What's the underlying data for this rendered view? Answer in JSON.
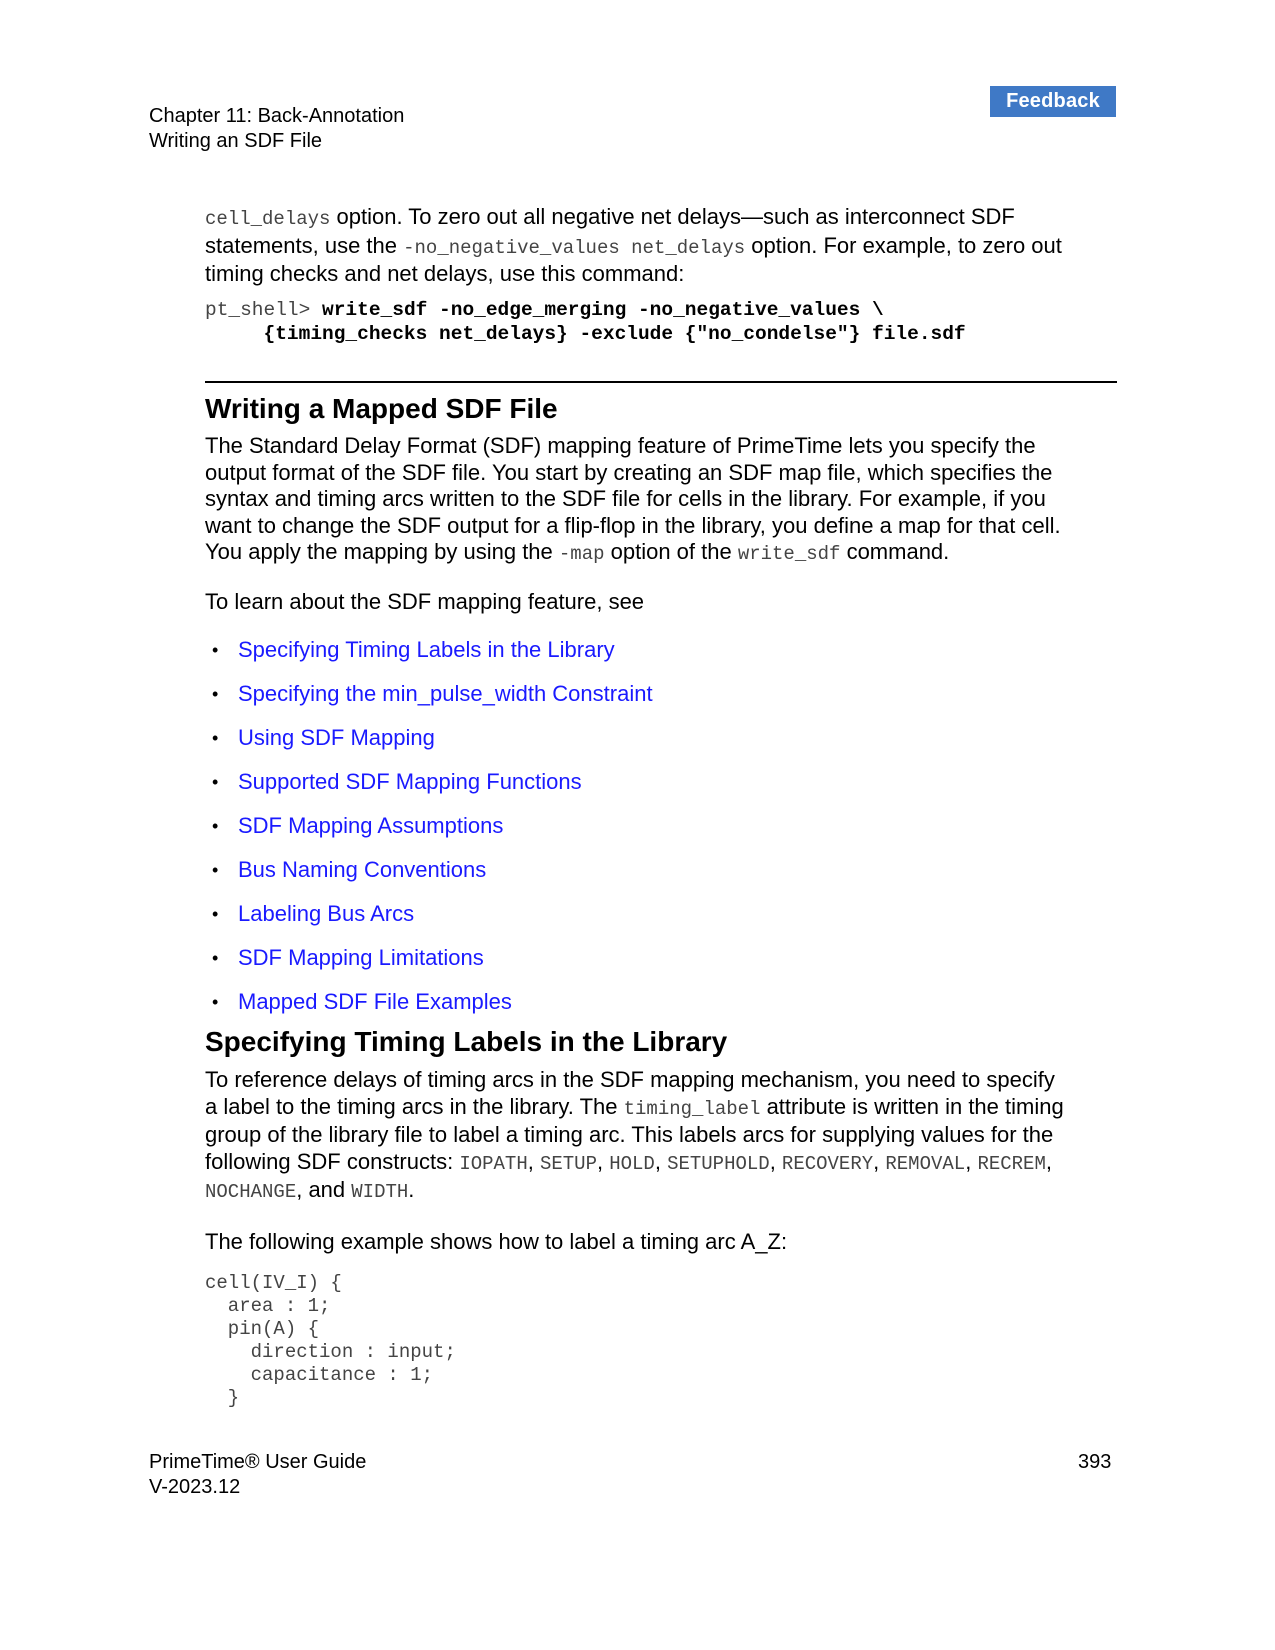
{
  "header": {
    "feedback_label": "Feedback",
    "chapter": "Chapter 11: Back-Annotation",
    "section": "Writing an SDF File"
  },
  "intro": {
    "p1_code1": "cell_delays",
    "p1_text1": " option. To zero out all negative net delays—such as interconnect SDF",
    "p1_text2": "statements, use the ",
    "p1_code2": "-no_negative_values net_delays",
    "p1_text3": " option. For example, to zero out",
    "p1_text4": "timing checks and net delays, use this command:",
    "cmd_prompt": "pt_shell> ",
    "cmd_line1": "write_sdf -no_edge_merging -no_negative_values \\",
    "cmd_line2": "     {timing_checks net_delays} -exclude {\"no_condelse\"} file.sdf"
  },
  "mapped": {
    "heading": "Writing a Mapped SDF File",
    "l1": "The Standard Delay Format (SDF) mapping feature of PrimeTime lets you specify the",
    "l2": "output format of the SDF file. You start by creating an SDF map file, which specifies the",
    "l3": "syntax and timing arcs written to the SDF file for cells in the library. For example, if you",
    "l4": "want to change the SDF output for a flip-flop in the library, you define a map for that cell.",
    "l5a": "You apply the mapping by using the ",
    "l5code1": "-map",
    "l5b": " option of the ",
    "l5code2": "write_sdf",
    "l5c": " command.",
    "learn": "To learn about the SDF mapping feature, see",
    "bullet": "•",
    "links": [
      "Specifying Timing Labels in the Library",
      "Specifying the min_pulse_width Constraint",
      "Using SDF Mapping",
      "Supported SDF Mapping Functions",
      "SDF Mapping Assumptions",
      "Bus Naming Conventions",
      "Labeling Bus Arcs",
      "SDF Mapping Limitations",
      "Mapped SDF File Examples"
    ]
  },
  "labels": {
    "heading": "Specifying Timing Labels in the Library",
    "l1": "To reference delays of timing arcs in the SDF mapping mechanism, you need to specify",
    "l2a": "a label to the timing arcs in the library. The ",
    "l2code": "timing_label",
    "l2b": " attribute is written in the timing",
    "l3": "group of the library file to label a timing arc. This labels arcs for supplying values for the",
    "l4a": "following SDF constructs: ",
    "constructs": [
      "IOPATH",
      "SETUP",
      "HOLD",
      "SETUPHOLD",
      "RECOVERY",
      "REMOVAL",
      "RECREM",
      "NOCHANGE",
      "WIDTH"
    ],
    "sep": ", ",
    "and": ", and ",
    "period": ".",
    "example_intro": "The following example shows how to label a timing arc A_Z:",
    "code": [
      "cell(IV_I) {",
      "  area : 1;",
      "  pin(A) {",
      "    direction : input;",
      "    capacitance : 1;",
      "  }"
    ]
  },
  "footer": {
    "title": "PrimeTime® User Guide",
    "version": "V-2023.12",
    "page": "393"
  }
}
